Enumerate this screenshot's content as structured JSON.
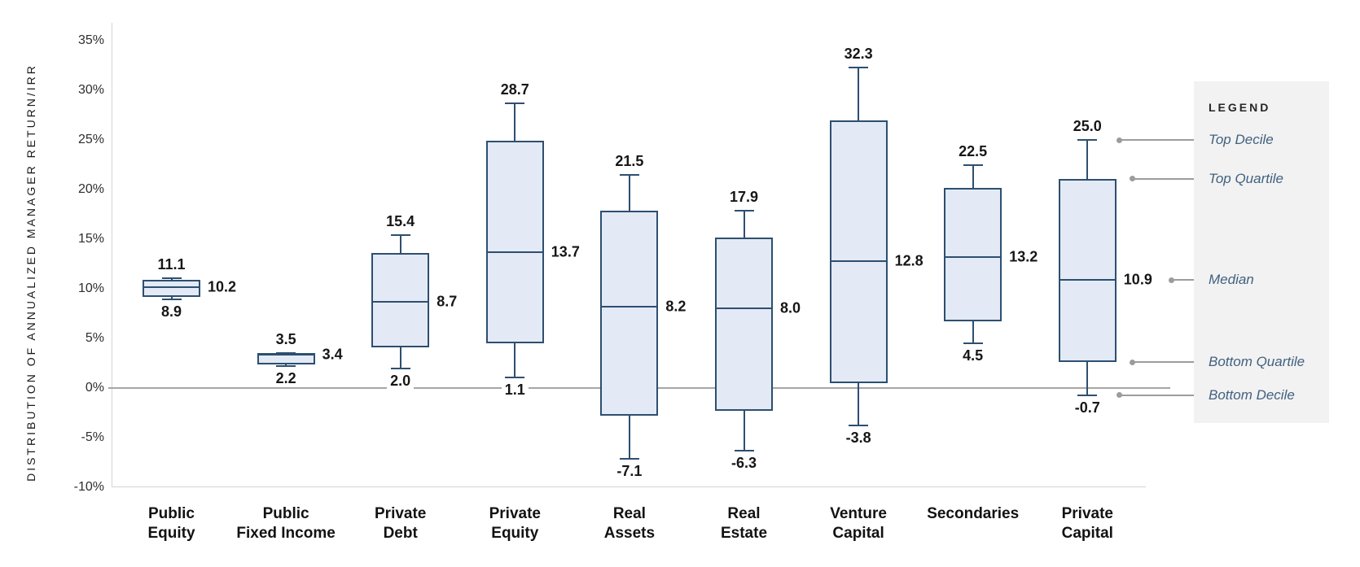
{
  "y_axis": {
    "title": "DISTRIBUTION OF ANNUALIZED MANAGER RETURN/IRR",
    "ticks": [
      {
        "label": "35%",
        "value": 35
      },
      {
        "label": "30%",
        "value": 30
      },
      {
        "label": "25%",
        "value": 25
      },
      {
        "label": "20%",
        "value": 20
      },
      {
        "label": "15%",
        "value": 15
      },
      {
        "label": "10%",
        "value": 10
      },
      {
        "label": "5%",
        "value": 5
      },
      {
        "label": "0%",
        "value": 0
      },
      {
        "label": "-5%",
        "value": -5
      },
      {
        "label": "-10%",
        "value": -10
      }
    ]
  },
  "legend": {
    "title": "LEGEND",
    "items": [
      {
        "label": "Top Decile",
        "key": "top_decile"
      },
      {
        "label": "Top Quartile",
        "key": "top_quartile"
      },
      {
        "label": "Median",
        "key": "median"
      },
      {
        "label": "Bottom Quartile",
        "key": "bottom_quartile"
      },
      {
        "label": "Bottom Decile",
        "key": "bottom_decile"
      }
    ]
  },
  "chart_data": {
    "type": "box",
    "title": "",
    "xlabel": "",
    "ylabel": "DISTRIBUTION OF ANNUALIZED MANAGER RETURN/IRR",
    "ylim": [
      -10,
      35
    ],
    "ytick_step": 5,
    "grid": false,
    "zero_line": true,
    "box_fill": "#e3eaf5",
    "box_border": "#2d4f70",
    "categories": [
      "Public Equity",
      "Public Fixed Income",
      "Private Debt",
      "Private Equity",
      "Real Assets",
      "Real Estate",
      "Venture Capital",
      "Secondaries",
      "Private Capital"
    ],
    "boxes": [
      {
        "name": "Public Equity",
        "slug": "public-equity",
        "lines": [
          "Public",
          "Equity"
        ],
        "top_decile": 11.1,
        "top_quartile": 10.9,
        "median": 10.2,
        "bottom_quartile": 9.2,
        "bottom_decile": 8.9
      },
      {
        "name": "Public Fixed Income",
        "slug": "public-fixed-income",
        "lines": [
          "Public",
          "Fixed Income"
        ],
        "top_decile": 3.5,
        "top_quartile": 3.5,
        "median": 3.4,
        "bottom_quartile": 2.4,
        "bottom_decile": 2.2
      },
      {
        "name": "Private Debt",
        "slug": "private-debt",
        "lines": [
          "Private",
          "Debt"
        ],
        "top_decile": 15.4,
        "top_quartile": 13.6,
        "median": 8.7,
        "bottom_quartile": 4.1,
        "bottom_decile": 2.0
      },
      {
        "name": "Private Equity",
        "slug": "private-equity",
        "lines": [
          "Private",
          "Equity"
        ],
        "top_decile": 28.7,
        "top_quartile": 24.9,
        "median": 13.7,
        "bottom_quartile": 4.5,
        "bottom_decile": 1.1
      },
      {
        "name": "Real Assets",
        "slug": "real-assets",
        "lines": [
          "Real",
          "Assets"
        ],
        "top_decile": 21.5,
        "top_quartile": 17.9,
        "median": 8.2,
        "bottom_quartile": -2.8,
        "bottom_decile": -7.1
      },
      {
        "name": "Real Estate",
        "slug": "real-estate",
        "lines": [
          "Real",
          "Estate"
        ],
        "top_decile": 17.9,
        "top_quartile": 15.2,
        "median": 8.0,
        "bottom_quartile": -2.3,
        "bottom_decile": -6.3
      },
      {
        "name": "Venture Capital",
        "slug": "venture-capital",
        "lines": [
          "Venture",
          "Capital"
        ],
        "top_decile": 32.3,
        "top_quartile": 27.0,
        "median": 12.8,
        "bottom_quartile": 0.5,
        "bottom_decile": -3.8
      },
      {
        "name": "Secondaries",
        "slug": "secondaries",
        "lines": [
          "Secondaries"
        ],
        "top_decile": 22.5,
        "top_quartile": 20.2,
        "median": 13.2,
        "bottom_quartile": 6.7,
        "bottom_decile": 4.5
      },
      {
        "name": "Private Capital",
        "slug": "private-capital",
        "lines": [
          "Private",
          "Capital"
        ],
        "top_decile": 25.0,
        "top_quartile": 21.1,
        "median": 10.9,
        "bottom_quartile": 2.6,
        "bottom_decile": -0.7
      }
    ],
    "labeled_values": "top_decile, median and bottom_decile are printed on the chart; quartiles are estimated from box edges"
  }
}
